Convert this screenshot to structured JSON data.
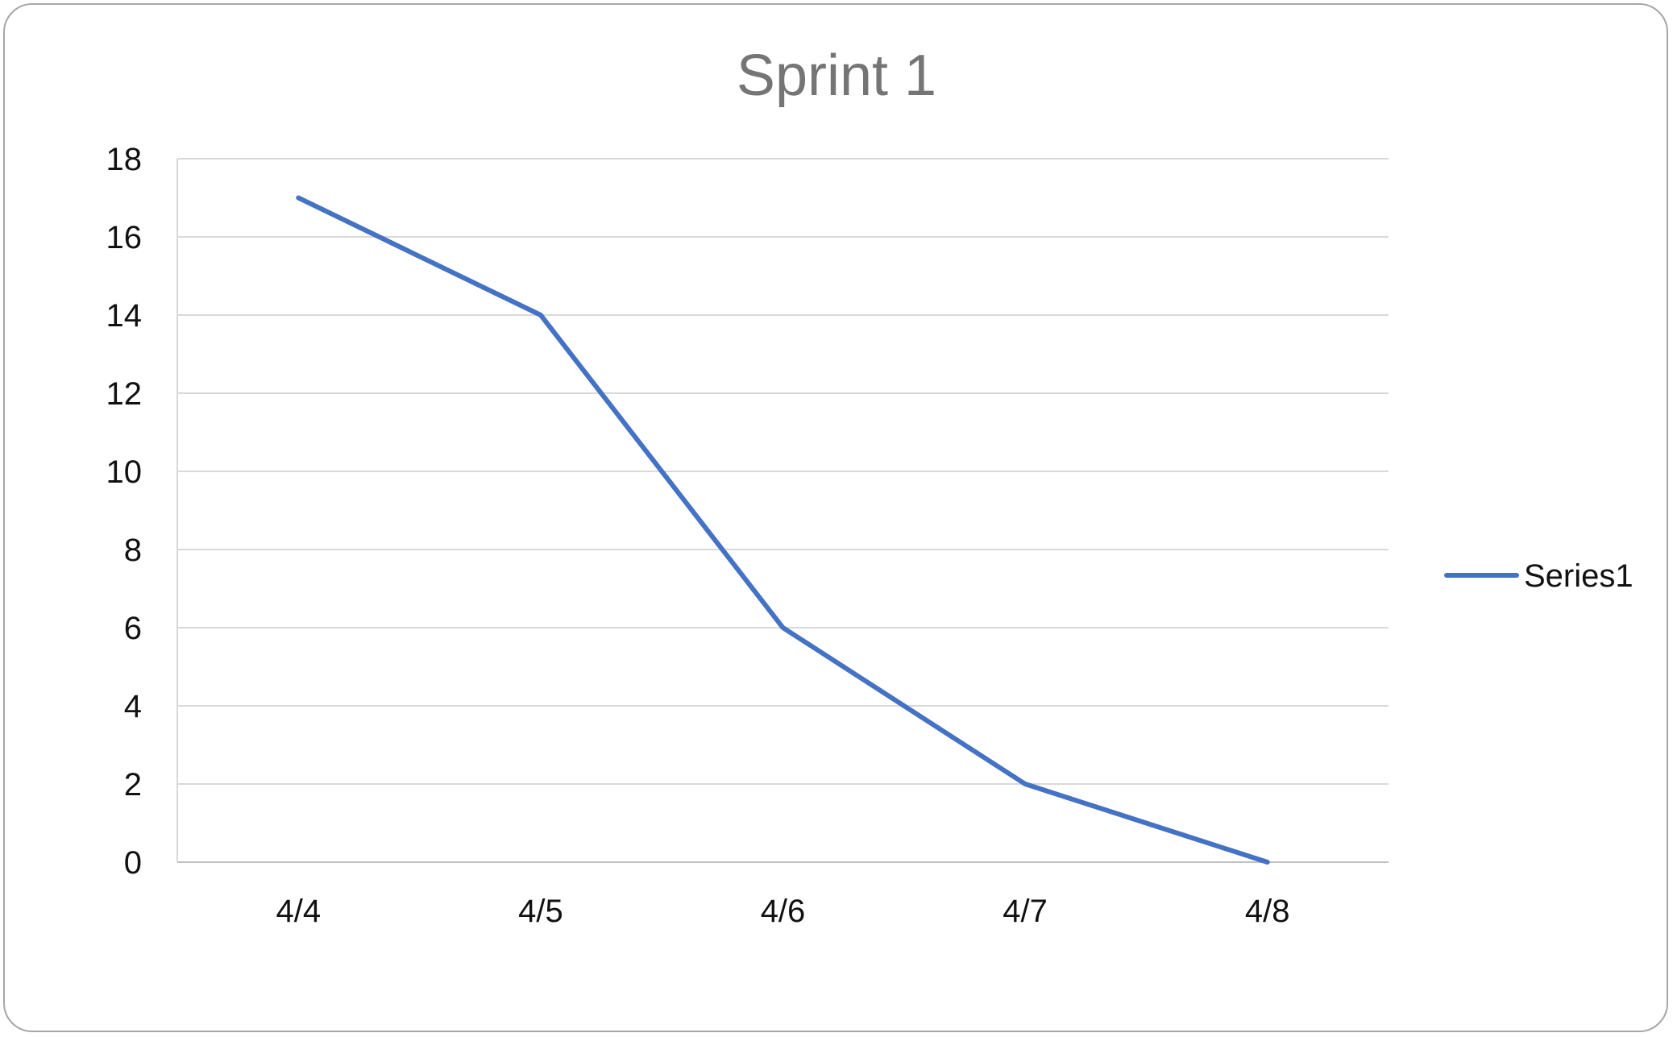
{
  "chart_data": {
    "type": "line",
    "title": "Sprint 1",
    "categories": [
      "4/4",
      "4/5",
      "4/6",
      "4/7",
      "4/8"
    ],
    "series": [
      {
        "name": "Series1",
        "values": [
          17,
          14,
          6,
          2,
          0
        ],
        "color": "#4472C4"
      }
    ],
    "ylim": [
      0,
      18
    ],
    "yticks": [
      "0",
      "2",
      "4",
      "6",
      "8",
      "10",
      "12",
      "14",
      "16",
      "18"
    ],
    "grid": true,
    "legend": "right"
  }
}
